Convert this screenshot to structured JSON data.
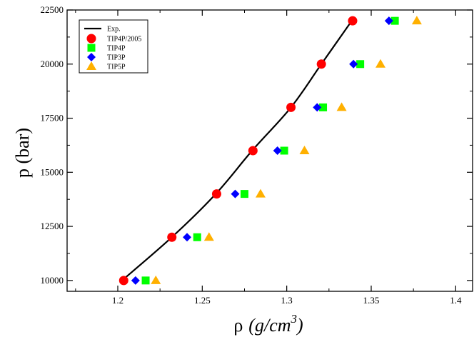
{
  "chart_data": {
    "type": "scatter",
    "title": "",
    "xlabel_symbol": "ρ",
    "xlabel_unit": "g/cm",
    "xlabel_exp": "3",
    "ylabel": "p (bar)",
    "xlim": [
      1.17,
      1.41
    ],
    "ylim": [
      9500,
      22500
    ],
    "x_ticks": [
      1.2,
      1.25,
      1.3,
      1.35,
      1.4
    ],
    "x_tick_labels": [
      "1.2",
      "1.25",
      "1.3",
      "1.35",
      "1.4"
    ],
    "y_ticks": [
      10000,
      12500,
      15000,
      17500,
      20000,
      22500
    ],
    "y_tick_labels": [
      "10000",
      "12500",
      "15000",
      "17500",
      "20000",
      "22500"
    ],
    "legend_position": "top-left",
    "series": [
      {
        "name": "Exp.",
        "kind": "line",
        "color": "#000000",
        "x": [
          1.2025,
          1.232,
          1.258,
          1.2795,
          1.3025,
          1.3205,
          1.3385
        ],
        "y": [
          10000,
          12000,
          14000,
          16000,
          18000,
          20000,
          22000
        ]
      },
      {
        "name": "TIP4P/2005",
        "kind": "circle",
        "color": "#ff0000",
        "x": [
          1.2035,
          1.232,
          1.2585,
          1.28,
          1.3025,
          1.3205,
          1.339
        ],
        "y": [
          10000,
          12000,
          14000,
          16000,
          18000,
          20000,
          22000
        ]
      },
      {
        "name": "TIP4P",
        "kind": "square",
        "color": "#00ff00",
        "x": [
          1.2165,
          1.247,
          1.275,
          1.2985,
          1.3215,
          1.3435,
          1.364
        ],
        "y": [
          10000,
          12000,
          14000,
          16000,
          18000,
          20000,
          22000
        ]
      },
      {
        "name": "TIP3P",
        "kind": "diamond",
        "color": "#0000ff",
        "x": [
          1.2105,
          1.241,
          1.2695,
          1.2945,
          1.318,
          1.3395,
          1.3605
        ],
        "y": [
          10000,
          12000,
          14000,
          16000,
          18000,
          20000,
          22000
        ]
      },
      {
        "name": "TIP5P",
        "kind": "triangle",
        "color": "#ffb000",
        "x": [
          1.2225,
          1.254,
          1.2845,
          1.3105,
          1.3325,
          1.3555,
          1.377
        ],
        "y": [
          10000,
          12000,
          14000,
          16000,
          18000,
          20000,
          22000
        ]
      }
    ]
  }
}
